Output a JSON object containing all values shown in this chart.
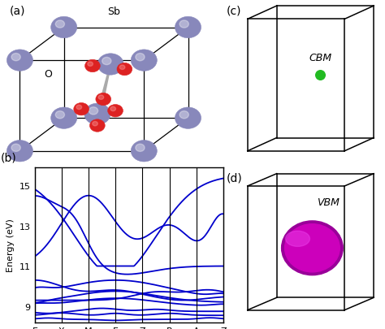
{
  "panel_labels": [
    "(a)",
    "(b)",
    "(c)",
    "(d)"
  ],
  "label_fontsize": 10,
  "band_color": "#0000cc",
  "band_linewidth": 1.3,
  "yticks": [
    9,
    11,
    13,
    15
  ],
  "ylim": [
    8.2,
    15.9
  ],
  "kpoints": [
    "Γ",
    "X",
    "M",
    "Γ",
    "Z",
    "R",
    "A",
    "Z"
  ],
  "ylabel": "Energy (eV)",
  "cbm_label": "CBM",
  "vbm_label": "VBM",
  "cbm_color": "#22bb22",
  "vbm_color": "#cc00bb",
  "sb_label": "Sb",
  "o_label": "O",
  "sb_color": "#8888bb",
  "o_color": "#dd2222",
  "background": "#ffffff",
  "box_color": "#000000",
  "fig_w": 4.74,
  "fig_h": 4.06,
  "dpi": 100
}
